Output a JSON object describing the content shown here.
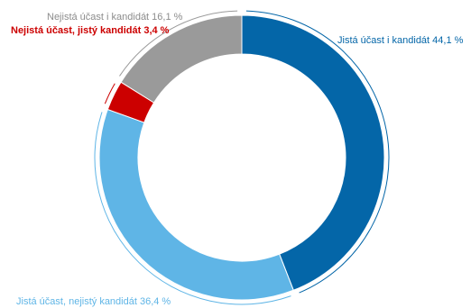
{
  "chart_data": {
    "type": "pie",
    "style": "donut",
    "slices": [
      {
        "label": "Jistá účast i kandidát 44,1 %",
        "value": 44.1,
        "color": "#0466a8",
        "label_color": "#0466a8"
      },
      {
        "label": "Jistá účast, nejistý kandidát 36,4 %",
        "value": 36.4,
        "color": "#5fb5e6",
        "label_color": "#5fb5e6"
      },
      {
        "label": "Nejistá účast, jistý kandidát 3,4 %",
        "value": 3.4,
        "color": "#cc0000",
        "label_color": "#cc0000"
      },
      {
        "label": "Nejistá účast i kandidát 16,1 %",
        "value": 16.1,
        "color": "#9a9a9a",
        "label_color": "#8c8c8c"
      }
    ]
  }
}
